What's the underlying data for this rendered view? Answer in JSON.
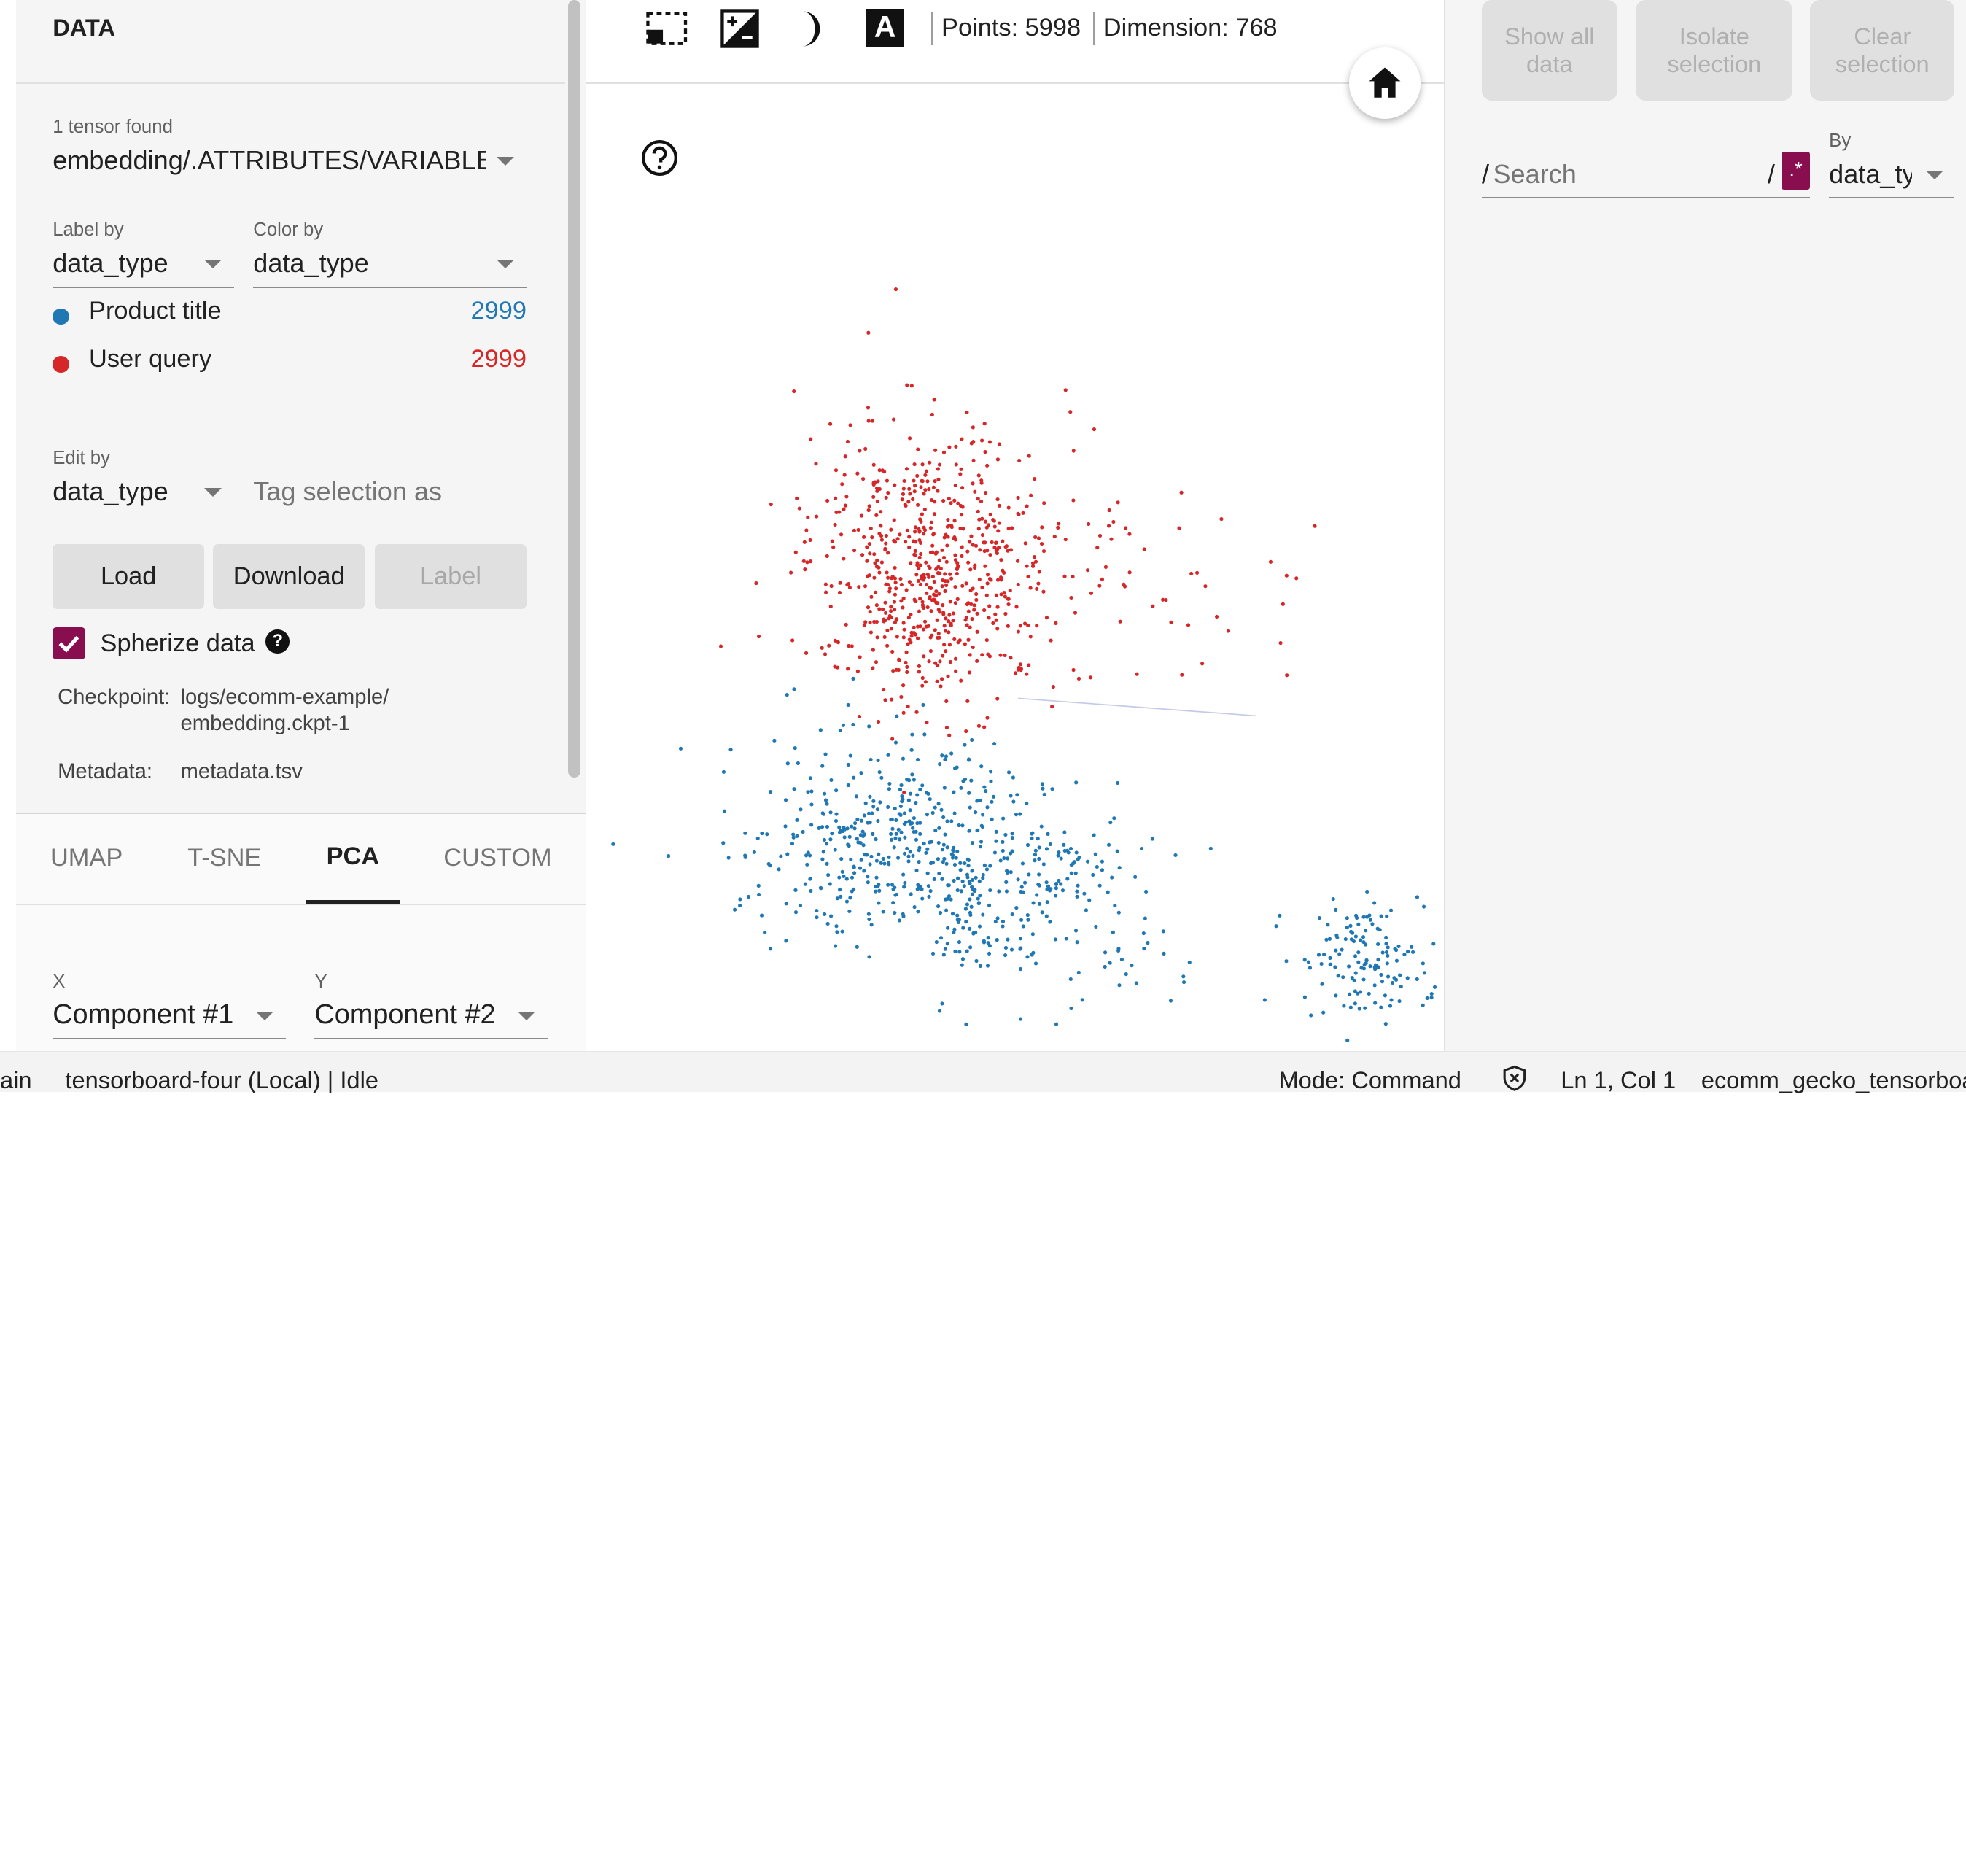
{
  "left": {
    "data_header": "DATA",
    "tensor_found": "1 tensor found",
    "tensor_name": "embedding/.ATTRIBUTES/VARIABLE_VALUE",
    "label_by": {
      "label": "Label by",
      "value": "data_type"
    },
    "color_by": {
      "label": "Color by",
      "value": "data_type"
    },
    "legend": [
      {
        "name": "Product title",
        "count": "2999",
        "color": "#1f77b4"
      },
      {
        "name": "User query",
        "count": "2999",
        "color": "#d62728"
      }
    ],
    "edit_by": {
      "label": "Edit by",
      "value": "data_type"
    },
    "tag_selection_placeholder": "Tag selection as",
    "buttons": {
      "load": "Load",
      "download": "Download",
      "label": "Label"
    },
    "spherize": {
      "label": "Spherize data",
      "checked": true
    },
    "checkpoint": {
      "key": "Checkpoint:",
      "line1": "logs/ecomm-example/",
      "line2": "embedding.ckpt-1"
    },
    "metadata": {
      "key": "Metadata:",
      "value": "metadata.tsv"
    },
    "tabs": [
      "UMAP",
      "T-SNE",
      "PCA",
      "CUSTOM"
    ],
    "active_tab": "PCA",
    "pca": {
      "x_label": "X",
      "x_value": "Component #1",
      "y_label": "Y",
      "y_value": "Component #2"
    }
  },
  "toolbar": {
    "icons": [
      "selection-icon",
      "night-mode-contrast-icon",
      "moon-icon",
      "label-a-icon"
    ],
    "points": "Points: 5998",
    "dimension": "Dimension: 768"
  },
  "right": {
    "show_all": "Show all data",
    "isolate": "Isolate selection",
    "clear": "Clear selection",
    "search_placeholder": "Search",
    "search_prefix": "/",
    "search_suffix": "/",
    "regex_badge": ".*",
    "by_label": "By",
    "by_value": "data_type"
  },
  "status": {
    "branch_fragment": "ain",
    "kernel": "tensorboard-four (Local) | Idle",
    "mode": "Mode: Command",
    "position": "Ln 1, Col 1",
    "file": "ecomm_gecko_tensorboard.ipynb"
  },
  "colors": {
    "accent": "#880e4f",
    "product": "#1f77b4",
    "query": "#d62728"
  }
}
